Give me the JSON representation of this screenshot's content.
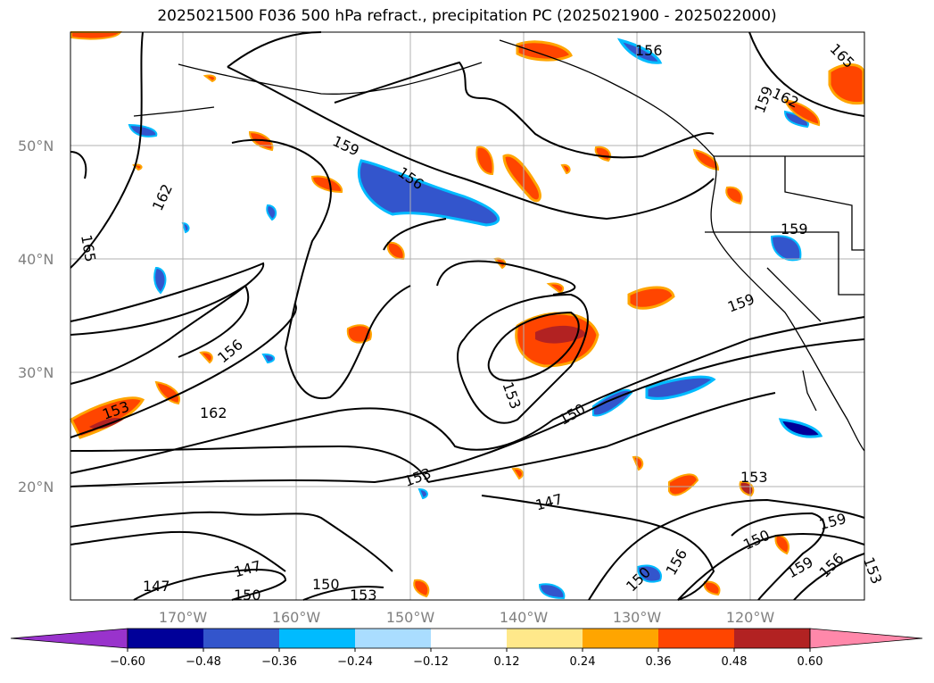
{
  "title": "2025021500 F036 500 hPa refract., precipitation PC (2025021900 - 2025022000)",
  "lat_labels": [
    "50°N",
    "40°N",
    "30°N",
    "20°N"
  ],
  "lon_labels": [
    "170°W",
    "160°W",
    "150°W",
    "140°W",
    "130°W",
    "120°W"
  ],
  "contour_labels": [
    "156",
    "165",
    "159",
    "162",
    "159",
    "156",
    "162",
    "165",
    "159",
    "159",
    "156",
    "153",
    "162",
    "153",
    "150",
    "153",
    "147",
    "150",
    "153",
    "159",
    "156",
    "150",
    "159",
    "156",
    "153",
    "147",
    "147",
    "150",
    "150",
    "153",
    "159",
    "159",
    "156"
  ],
  "colorbar": {
    "ticks": [
      "−0.60",
      "−0.48",
      "−0.36",
      "−0.24",
      "−0.12",
      "0.12",
      "0.24",
      "0.36",
      "0.48",
      "0.60"
    ],
    "colors": [
      "#9933cc",
      "#000099",
      "#3355cc",
      "#00bbff",
      "#aaddff",
      "#ffffff",
      "#ffe88a",
      "#ffa500",
      "#ff4500",
      "#b22222",
      "#ff88aa"
    ]
  }
}
